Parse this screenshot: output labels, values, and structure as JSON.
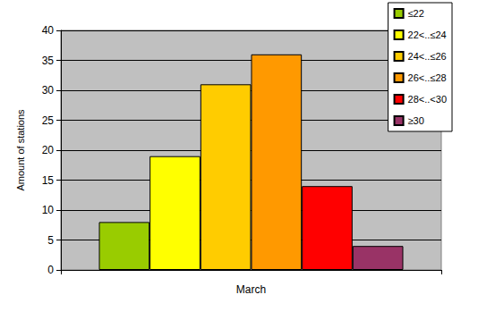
{
  "chart_data": {
    "type": "bar",
    "categories": [
      "March"
    ],
    "series": [
      {
        "name": "≤22",
        "color": "#99cc00",
        "values": [
          8
        ]
      },
      {
        "name": "22<..≤24",
        "color": "#ffff00",
        "values": [
          19
        ]
      },
      {
        "name": "24<..≤26",
        "color": "#ffcc00",
        "values": [
          31
        ]
      },
      {
        "name": "26<..≤28",
        "color": "#ff9900",
        "values": [
          36
        ]
      },
      {
        "name": "28<..<30",
        "color": "#ff0000",
        "values": [
          14
        ]
      },
      {
        "name": "≥30",
        "color": "#993366",
        "values": [
          4
        ]
      }
    ],
    "ylabel": "Amount of stations",
    "ylim": [
      0,
      40
    ],
    "yticks": [
      0,
      5,
      10,
      15,
      20,
      25,
      30,
      35,
      40
    ],
    "grid": true,
    "legend": "top-right"
  }
}
